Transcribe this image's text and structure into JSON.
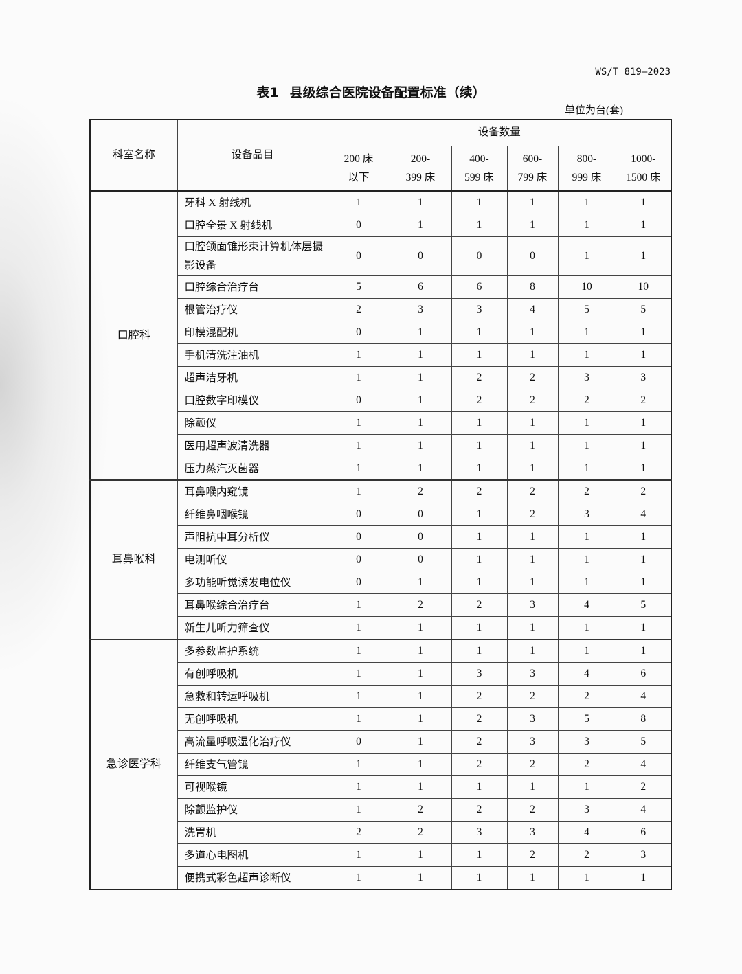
{
  "document": {
    "standard_number": "WS/T 819—2023",
    "table_label": "表1",
    "table_title": "县级综合医院设备配置标准（续）",
    "unit_note": "单位为台(套)"
  },
  "table": {
    "headers": {
      "department": "科室名称",
      "equipment": "设备品目",
      "quantity_group": "设备数量",
      "bed_ranges": [
        [
          "200 床",
          "以下"
        ],
        [
          "200-",
          "399 床"
        ],
        [
          "400-",
          "599 床"
        ],
        [
          "600-",
          "799 床"
        ],
        [
          "800-",
          "999 床"
        ],
        [
          "1000-",
          "1500 床"
        ]
      ]
    },
    "sections": [
      {
        "department": "口腔科",
        "rows": [
          {
            "item": "牙科 X 射线机",
            "values": [
              1,
              1,
              1,
              1,
              1,
              1
            ]
          },
          {
            "item": "口腔全景 X 射线机",
            "values": [
              0,
              1,
              1,
              1,
              1,
              1
            ]
          },
          {
            "item": "口腔颌面锥形束计算机体层摄影设备",
            "values": [
              0,
              0,
              0,
              0,
              1,
              1
            ]
          },
          {
            "item": "口腔综合治疗台",
            "values": [
              5,
              6,
              6,
              8,
              10,
              10
            ]
          },
          {
            "item": "根管治疗仪",
            "values": [
              2,
              3,
              3,
              4,
              5,
              5
            ]
          },
          {
            "item": "印模混配机",
            "values": [
              0,
              1,
              1,
              1,
              1,
              1
            ]
          },
          {
            "item": "手机清洗注油机",
            "values": [
              1,
              1,
              1,
              1,
              1,
              1
            ]
          },
          {
            "item": "超声洁牙机",
            "values": [
              1,
              1,
              2,
              2,
              3,
              3
            ]
          },
          {
            "item": "口腔数字印模仪",
            "values": [
              0,
              1,
              2,
              2,
              2,
              2
            ]
          },
          {
            "item": "除颤仪",
            "values": [
              1,
              1,
              1,
              1,
              1,
              1
            ]
          },
          {
            "item": "医用超声波清洗器",
            "values": [
              1,
              1,
              1,
              1,
              1,
              1
            ]
          },
          {
            "item": "压力蒸汽灭菌器",
            "values": [
              1,
              1,
              1,
              1,
              1,
              1
            ]
          }
        ]
      },
      {
        "department": "耳鼻喉科",
        "rows": [
          {
            "item": "耳鼻喉内窥镜",
            "values": [
              1,
              2,
              2,
              2,
              2,
              2
            ]
          },
          {
            "item": "纤维鼻咽喉镜",
            "values": [
              0,
              0,
              1,
              2,
              3,
              4
            ]
          },
          {
            "item": "声阻抗中耳分析仪",
            "values": [
              0,
              0,
              1,
              1,
              1,
              1
            ]
          },
          {
            "item": "电测听仪",
            "values": [
              0,
              0,
              1,
              1,
              1,
              1
            ]
          },
          {
            "item": "多功能听觉诱发电位仪",
            "values": [
              0,
              1,
              1,
              1,
              1,
              1
            ]
          },
          {
            "item": "耳鼻喉综合治疗台",
            "values": [
              1,
              2,
              2,
              3,
              4,
              5
            ]
          },
          {
            "item": "新生儿听力筛查仪",
            "values": [
              1,
              1,
              1,
              1,
              1,
              1
            ]
          }
        ]
      },
      {
        "department": "急诊医学科",
        "rows": [
          {
            "item": "多参数监护系统",
            "values": [
              1,
              1,
              1,
              1,
              1,
              1
            ]
          },
          {
            "item": "有创呼吸机",
            "values": [
              1,
              1,
              3,
              3,
              4,
              6
            ]
          },
          {
            "item": "急救和转运呼吸机",
            "values": [
              1,
              1,
              2,
              2,
              2,
              4
            ]
          },
          {
            "item": "无创呼吸机",
            "values": [
              1,
              1,
              2,
              3,
              5,
              8
            ]
          },
          {
            "item": "高流量呼吸湿化治疗仪",
            "values": [
              0,
              1,
              2,
              3,
              3,
              5
            ]
          },
          {
            "item": "纤维支气管镜",
            "values": [
              1,
              1,
              2,
              2,
              2,
              4
            ]
          },
          {
            "item": "可视喉镜",
            "values": [
              1,
              1,
              1,
              1,
              1,
              2
            ]
          },
          {
            "item": "除颤监护仪",
            "values": [
              1,
              2,
              2,
              2,
              3,
              4
            ]
          },
          {
            "item": "洗胃机",
            "values": [
              2,
              2,
              3,
              3,
              4,
              6
            ]
          },
          {
            "item": "多道心电图机",
            "values": [
              1,
              1,
              1,
              2,
              2,
              3
            ]
          },
          {
            "item": "便携式彩色超声诊断仪",
            "values": [
              1,
              1,
              1,
              1,
              1,
              1
            ]
          }
        ]
      }
    ]
  }
}
